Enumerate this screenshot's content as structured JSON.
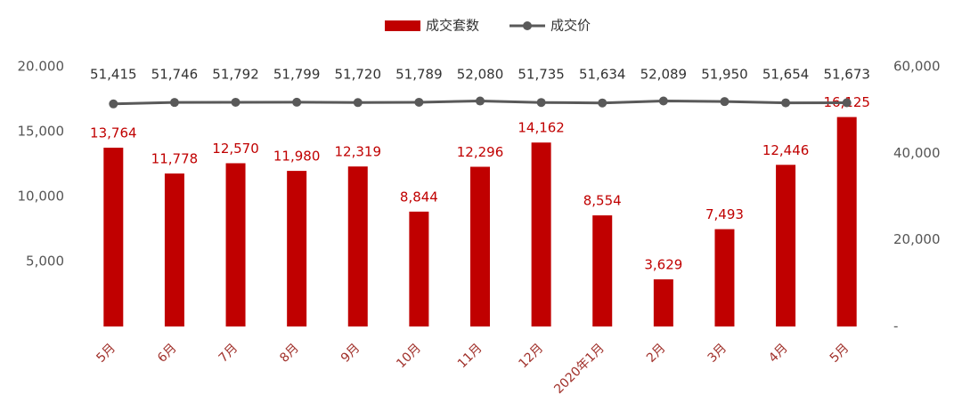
{
  "chart_data": {
    "type": "bar_line",
    "categories": [
      "5月",
      "6月",
      "7月",
      "8月",
      "9月",
      "10月",
      "11月",
      "12月",
      "2020年1月",
      "2月",
      "3月",
      "4月",
      "5月"
    ],
    "series": [
      {
        "name": "成交套数",
        "type": "bar",
        "color": "#c00000",
        "axis": "y",
        "values": [
          13764,
          11778,
          12570,
          11980,
          12319,
          8844,
          12296,
          14162,
          8554,
          3629,
          7493,
          12446,
          16125
        ],
        "value_labels": [
          "13,764",
          "11,778",
          "12,570",
          "11,980",
          "12,319",
          "8,844",
          "12,296",
          "14,162",
          "8,554",
          "3,629",
          "7,493",
          "12,446",
          "16,125"
        ]
      },
      {
        "name": "成交价",
        "type": "line",
        "color": "#595959",
        "axis": "y2",
        "values": [
          51415,
          51746,
          51792,
          51799,
          51720,
          51789,
          52080,
          51735,
          51634,
          52089,
          51950,
          51654,
          51673
        ],
        "value_labels": [
          "51,415",
          "51,746",
          "51,792",
          "51,799",
          "51,720",
          "51,789",
          "52,080",
          "51,735",
          "51,634",
          "52,089",
          "51,950",
          "51,654",
          "51,673"
        ]
      }
    ],
    "ylim": [
      0,
      20000
    ],
    "yticks": [
      {
        "value": 5000,
        "label": "5,000"
      },
      {
        "value": 10000,
        "label": "10,000"
      },
      {
        "value": 15000,
        "label": "15,000"
      },
      {
        "value": 20000,
        "label": "20.000"
      }
    ],
    "y2lim": [
      0,
      60000
    ],
    "y2ticks": [
      {
        "value": 0,
        "label": "-"
      },
      {
        "value": 20000,
        "label": "20,000"
      },
      {
        "value": 40000,
        "label": "40,000"
      },
      {
        "value": 60000,
        "label": "60,000"
      }
    ],
    "legend": "top"
  }
}
